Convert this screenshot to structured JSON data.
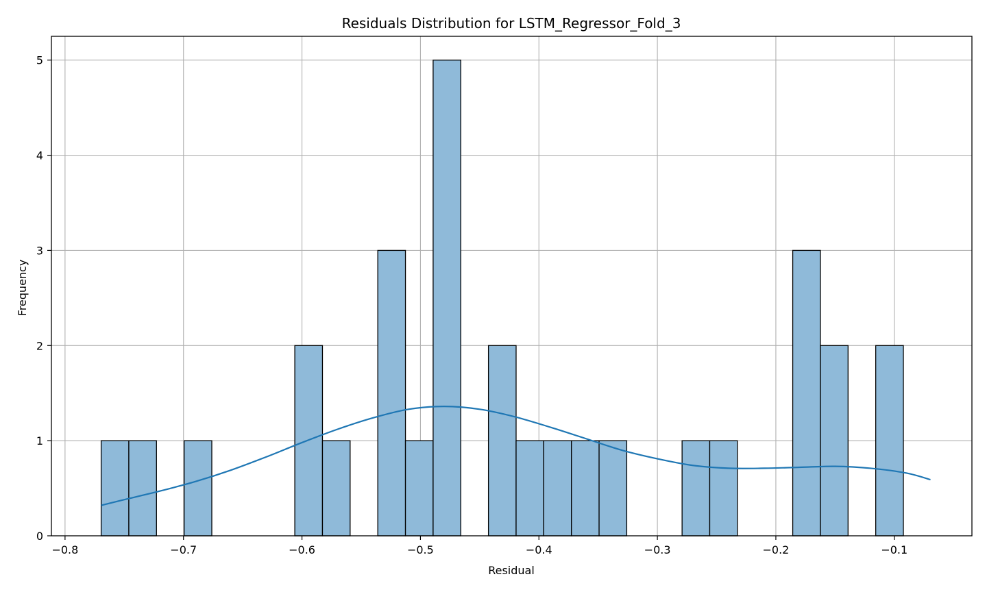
{
  "chart_data": {
    "type": "bar",
    "title": "Residuals Distribution for LSTM_Regressor_Fold_3",
    "xlabel": "Residual",
    "ylabel": "Frequency",
    "xlim": [
      -0.8115,
      -0.0345
    ],
    "ylim": [
      0,
      5.25
    ],
    "grid": true,
    "bin_start": -0.7695,
    "bin_width": 0.02335,
    "counts": [
      1,
      1,
      0,
      1,
      0,
      0,
      0,
      2,
      1,
      0,
      3,
      1,
      5,
      0,
      2,
      1,
      1,
      1,
      1,
      0,
      0,
      1,
      1,
      0,
      0,
      3,
      2,
      0,
      2
    ],
    "bar_color": "#8fbad9",
    "bar_edge_color": "#000000",
    "kde_color": "#1f77b4",
    "kde": {
      "x": [
        -0.7695,
        -0.75,
        -0.72,
        -0.69,
        -0.66,
        -0.63,
        -0.6,
        -0.57,
        -0.54,
        -0.51,
        -0.48,
        -0.45,
        -0.42,
        -0.39,
        -0.36,
        -0.33,
        -0.3,
        -0.27,
        -0.24,
        -0.21,
        -0.18,
        -0.15,
        -0.12,
        -0.09,
        -0.0695
      ],
      "y": [
        0.32,
        0.38,
        0.47,
        0.57,
        0.69,
        0.83,
        0.98,
        1.12,
        1.24,
        1.33,
        1.36,
        1.33,
        1.25,
        1.14,
        1.02,
        0.9,
        0.81,
        0.74,
        0.71,
        0.71,
        0.72,
        0.73,
        0.71,
        0.66,
        0.59
      ]
    },
    "xticks": [
      -0.8,
      -0.7,
      -0.6,
      -0.5,
      -0.4,
      -0.3,
      -0.2,
      -0.1
    ],
    "xtick_labels": [
      "−0.8",
      "−0.7",
      "−0.6",
      "−0.5",
      "−0.4",
      "−0.3",
      "−0.2",
      "−0.1"
    ],
    "yticks": [
      0,
      1,
      2,
      3,
      4,
      5
    ],
    "ytick_labels": [
      "0",
      "1",
      "2",
      "3",
      "4",
      "5"
    ]
  }
}
